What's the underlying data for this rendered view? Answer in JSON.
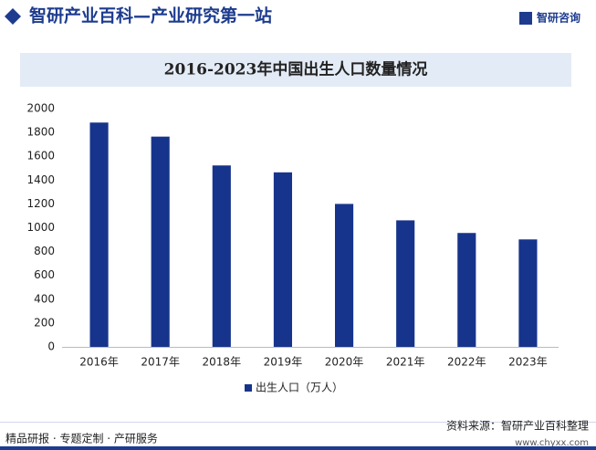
{
  "header": {
    "title": "智研产业百科—产业研究第一站",
    "logo": "智研咨询"
  },
  "chart_data": {
    "type": "bar",
    "title": "2016-2023年中国出生人口数量情况",
    "categories": [
      "2016年",
      "2017年",
      "2018年",
      "2019年",
      "2020年",
      "2021年",
      "2022年",
      "2023年"
    ],
    "series": [
      {
        "name": "出生人口（万人）",
        "color": "#17348c",
        "values": [
          1883,
          1765,
          1523,
          1465,
          1200,
          1062,
          956,
          902
        ]
      }
    ],
    "ylim": [
      0,
      2000
    ],
    "yticks": [
      0,
      200,
      400,
      600,
      800,
      1000,
      1200,
      1400,
      1600,
      1800,
      2000
    ],
    "grid": false
  },
  "footer": {
    "left": "精品研报 · 专题定制 · 产研服务",
    "source": "资料来源：智研产业百科整理",
    "url": "www.chyxx.com"
  }
}
